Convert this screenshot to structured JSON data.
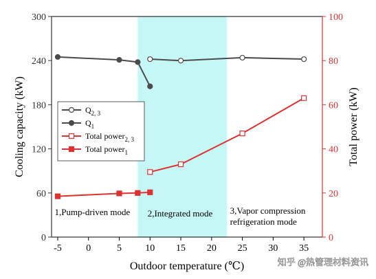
{
  "chart_data": {
    "type": "line",
    "x_label": "Outdoor temperature (℃)",
    "y_left_label": "Cooling capacity (kW)",
    "y_right_label": "Total power (kW)",
    "x_range": [
      -6,
      38
    ],
    "x_ticks": [
      -5,
      0,
      5,
      10,
      15,
      20,
      25,
      30,
      35
    ],
    "y_left_range": [
      0,
      300
    ],
    "y_left_ticks": [
      0,
      60,
      120,
      180,
      240,
      300
    ],
    "y_right_range": [
      0,
      100
    ],
    "y_right_ticks": [
      0,
      20,
      40,
      60,
      80,
      100
    ],
    "left_axis_color": "#333333",
    "right_axis_color": "#e03131",
    "highlight_band": {
      "x_from": 8,
      "x_to": 22.5,
      "color": "#c6f7f7"
    },
    "region_annotations": [
      {
        "lines": [
          "1,Pump-driven mode"
        ],
        "x": -5.5,
        "y_left": 30
      },
      {
        "lines": [
          "2,Integrated mode"
        ],
        "x": 9.6,
        "y_left": 28
      },
      {
        "lines": [
          "3,Vapor compression",
          "refrigeration mode"
        ],
        "x": 23,
        "y_left": 32
      }
    ],
    "series": [
      {
        "key": "q23",
        "axis": "left",
        "marker": "circle-open",
        "color": "#4a4a4a",
        "x": [
          10,
          15,
          25,
          35
        ],
        "y": [
          242,
          240,
          244,
          242
        ]
      },
      {
        "key": "q1",
        "axis": "left",
        "marker": "circle-filled",
        "color": "#4a4a4a",
        "x": [
          -5,
          5,
          8,
          10
        ],
        "y": [
          245,
          241,
          238,
          205
        ]
      },
      {
        "key": "p23",
        "axis": "right",
        "marker": "square-open",
        "color": "#e03131",
        "x": [
          10,
          15,
          25,
          35
        ],
        "y": [
          29.5,
          33,
          47,
          63
        ]
      },
      {
        "key": "p1",
        "axis": "right",
        "marker": "square-filled",
        "color": "#e03131",
        "x": [
          -5,
          5,
          8,
          10
        ],
        "y": [
          18.5,
          19.8,
          20,
          20.3
        ]
      }
    ],
    "legend": {
      "placement": "middle-left",
      "entries": [
        {
          "series": "q23",
          "main": "Q",
          "sub": "2, 3"
        },
        {
          "series": "q1",
          "main": "Q",
          "sub": "1"
        },
        {
          "series": "p23",
          "main": "Total power",
          "sub": "2, 3"
        },
        {
          "series": "p1",
          "main": "Total power",
          "sub": "1"
        }
      ]
    }
  },
  "watermark": "知乎 @热管理材料资讯"
}
